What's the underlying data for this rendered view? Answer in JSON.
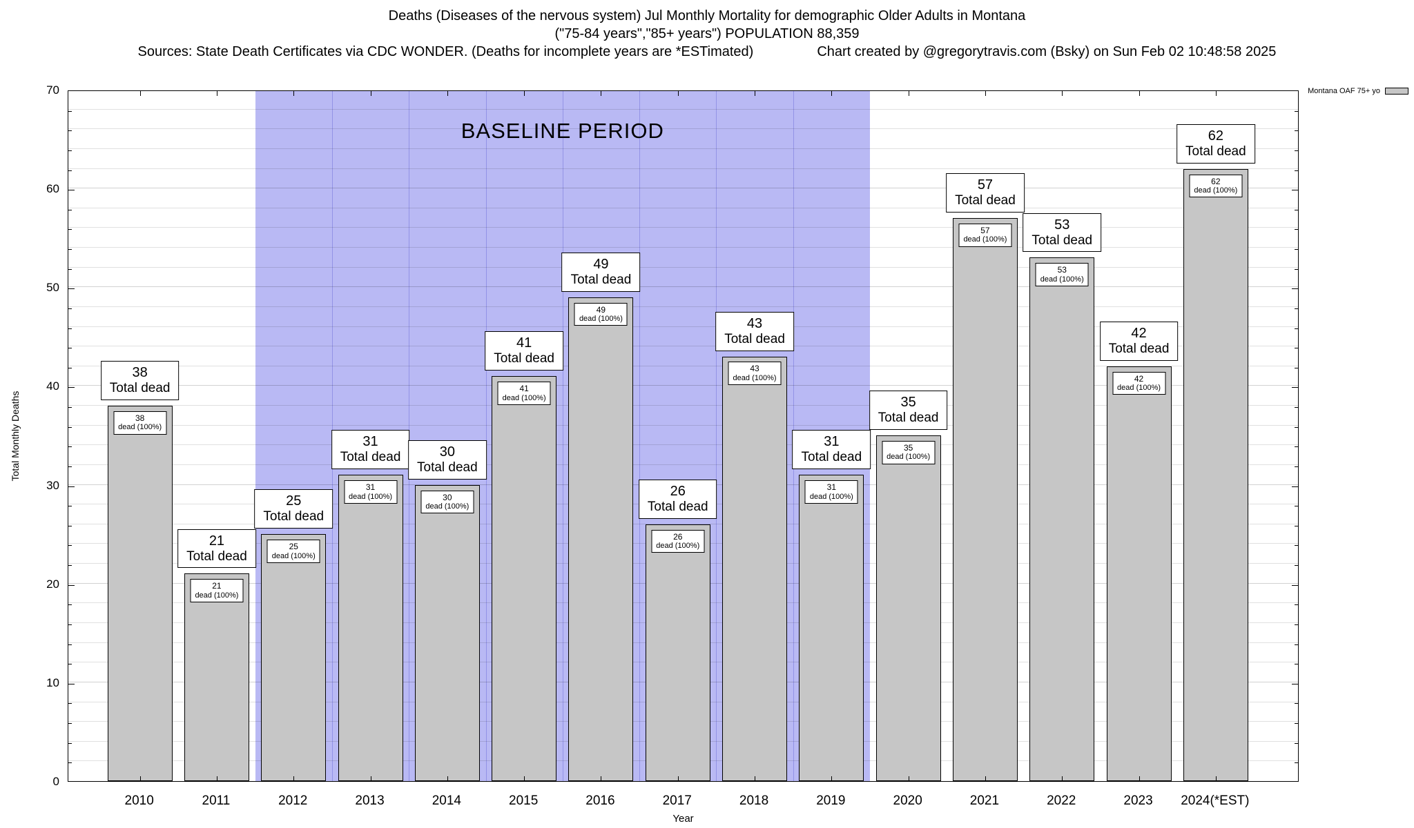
{
  "header": {
    "line1": "Deaths (Diseases of the nervous system) Jul Monthly Mortality for demographic Older Adults in Montana",
    "line2": "(\"75-84 years\",\"85+ years\") POPULATION 88,359",
    "sources": "Sources: State Death Certificates via CDC WONDER. (Deaths for incomplete years are *ESTimated)",
    "credit": "Chart created by @gregorytravis.com (Bsky) on Sun Feb 02 10:48:58 2025"
  },
  "legend": {
    "label": "Montana OAF 75+ yo"
  },
  "axes": {
    "ylabel": "Total Monthly Deaths",
    "xlabel": "Year"
  },
  "chart_data": {
    "type": "bar",
    "title": "Deaths (Diseases of the nervous system) Jul Monthly Mortality for demographic Older Adults in Montana",
    "subtitle": "(\"75-84 years\",\"85+ years\") POPULATION 88,359",
    "categories": [
      "2010",
      "2011",
      "2012",
      "2013",
      "2014",
      "2015",
      "2016",
      "2017",
      "2018",
      "2019",
      "2020",
      "2021",
      "2022",
      "2023",
      "2024(*EST)"
    ],
    "values": [
      38,
      21,
      25,
      31,
      30,
      41,
      49,
      26,
      43,
      31,
      35,
      57,
      53,
      42,
      62
    ],
    "series_name": "Montana OAF 75+ yo",
    "xlabel": "Year",
    "ylabel": "Total Monthly Deaths",
    "ylim": [
      0,
      70
    ],
    "ytick_step": 10,
    "minor_grid_step": 2,
    "grid": true,
    "legend_position": "top-right",
    "bar_color": "#c6c6c6",
    "annotations": {
      "total_label_suffix": "Total dead",
      "inner_label_suffix": "dead (100%)",
      "baseline": {
        "label": "BASELINE PERIOD",
        "start_category": "2012",
        "end_category": "2019",
        "color": "#b9b9f4"
      }
    }
  }
}
